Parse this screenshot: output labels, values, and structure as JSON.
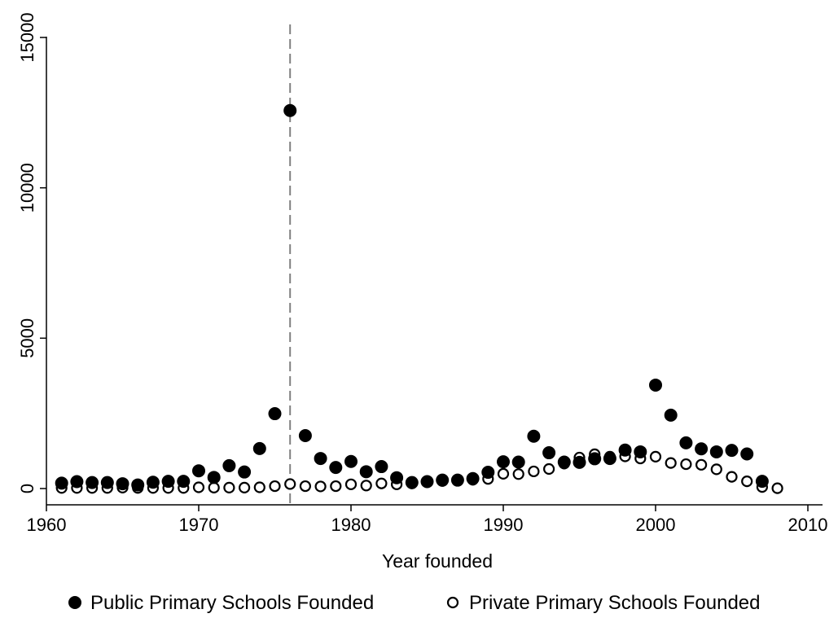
{
  "chart_data": {
    "type": "scatter",
    "title": "",
    "xlabel": "Year founded",
    "ylabel": "",
    "xlim": [
      1960,
      2010
    ],
    "ylim": [
      0,
      15000
    ],
    "xticks": [
      1960,
      1970,
      1980,
      1990,
      2000,
      2010
    ],
    "yticks": [
      0,
      5000,
      10000,
      15000
    ],
    "grid": false,
    "legend_position": "bottom",
    "reference_line": {
      "axis": "x",
      "value": 1976,
      "style": "dashed",
      "color": "#808080"
    },
    "series": [
      {
        "name": "Public Primary Schools Founded",
        "marker": "filled-circle",
        "color": "#000000",
        "x": [
          1961,
          1962,
          1963,
          1964,
          1965,
          1966,
          1967,
          1968,
          1969,
          1970,
          1971,
          1972,
          1973,
          1974,
          1975,
          1976,
          1977,
          1978,
          1979,
          1980,
          1981,
          1982,
          1983,
          1984,
          1985,
          1986,
          1987,
          1988,
          1989,
          1990,
          1991,
          1992,
          1993,
          1994,
          1995,
          1996,
          1997,
          1998,
          1999,
          2000,
          2001,
          2002,
          2003,
          2004,
          2005,
          2006,
          2007
        ],
        "y": [
          180,
          230,
          200,
          200,
          160,
          120,
          210,
          240,
          240,
          590,
          370,
          760,
          550,
          1330,
          2490,
          12570,
          1760,
          1000,
          700,
          900,
          560,
          730,
          360,
          200,
          230,
          280,
          280,
          330,
          540,
          890,
          880,
          1740,
          1190,
          880,
          870,
          990,
          1000,
          1280,
          1220,
          3440,
          2440,
          1520,
          1320,
          1220,
          1270,
          1150,
          240
        ]
      },
      {
        "name": "Private Primary Schools Founded",
        "marker": "hollow-circle",
        "color": "#000000",
        "x": [
          1961,
          1962,
          1963,
          1964,
          1965,
          1966,
          1967,
          1968,
          1969,
          1970,
          1971,
          1972,
          1973,
          1974,
          1975,
          1976,
          1977,
          1978,
          1979,
          1980,
          1981,
          1982,
          1983,
          1984,
          1985,
          1986,
          1987,
          1988,
          1989,
          1990,
          1991,
          1992,
          1993,
          1994,
          1995,
          1996,
          1997,
          1998,
          1999,
          2000,
          2001,
          2002,
          2003,
          2004,
          2005,
          2006,
          2007,
          2008
        ],
        "y": [
          20,
          20,
          20,
          20,
          30,
          20,
          20,
          20,
          20,
          40,
          30,
          30,
          30,
          40,
          80,
          150,
          80,
          70,
          80,
          140,
          100,
          170,
          140,
          170,
          240,
          250,
          260,
          290,
          320,
          490,
          480,
          570,
          650,
          830,
          1030,
          1140,
          1060,
          1070,
          1000,
          1060,
          850,
          810,
          790,
          640,
          390,
          240,
          50,
          10
        ]
      }
    ]
  }
}
